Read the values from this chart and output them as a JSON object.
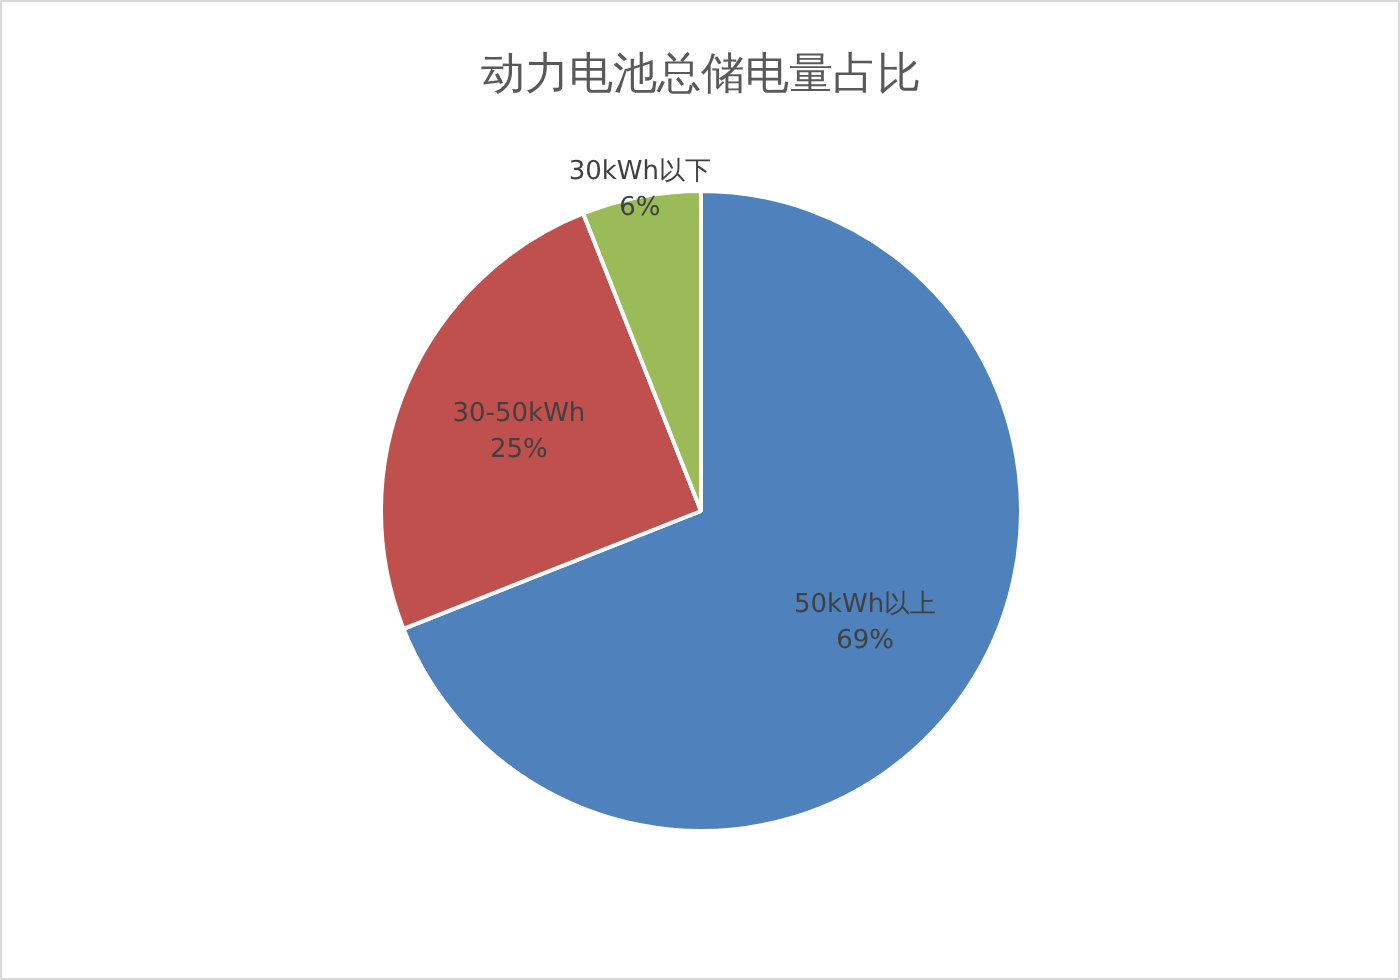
{
  "chart_data": {
    "type": "pie",
    "title": "动力电池总储电量占比",
    "categories": [
      "50kWh以上",
      "30-50kWh",
      "30kWh以下"
    ],
    "values": [
      69,
      25,
      6
    ],
    "colors": [
      "#4f81bd",
      "#c0504d",
      "#9bbb59"
    ],
    "value_labels": [
      "69%",
      "25%",
      "6%"
    ]
  }
}
